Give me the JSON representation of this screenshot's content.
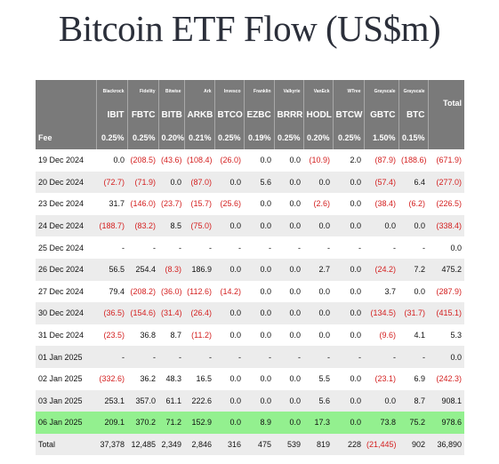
{
  "title": "Bitcoin ETF Flow (US$m)",
  "colors": {
    "header_bg": "#7a7a7a",
    "negative": "#d42020",
    "highlight": "#93f08f",
    "alt_row": "#ececec"
  },
  "issuers": [
    "Blackrock",
    "Fidelity",
    "Bitwise",
    "Ark",
    "Invesco",
    "Franklin",
    "Valkyrie",
    "VanEck",
    "WTree",
    "Grayscale",
    "Grayscale"
  ],
  "total_header": "Total",
  "tickers": [
    "IBIT",
    "FBTC",
    "BITB",
    "ARKB",
    "BTCO",
    "EZBC",
    "BRRR",
    "HODL",
    "BTCW",
    "GBTC",
    "BTC"
  ],
  "fee_label": "Fee",
  "fees": [
    "0.25%",
    "0.25%",
    "0.20%",
    "0.21%",
    "0.25%",
    "0.19%",
    "0.25%",
    "0.20%",
    "0.25%",
    "1.50%",
    "0.15%"
  ],
  "rows": [
    {
      "date": "19 Dec 2024",
      "values": [
        "0.0",
        "(208.5)",
        "(43.6)",
        "(108.4)",
        "(26.0)",
        "0.0",
        "0.0",
        "(10.9)",
        "2.0",
        "(87.9)",
        "(188.6)",
        "(671.9)"
      ]
    },
    {
      "date": "20 Dec 2024",
      "values": [
        "(72.7)",
        "(71.9)",
        "0.0",
        "(87.0)",
        "0.0",
        "5.6",
        "0.0",
        "0.0",
        "0.0",
        "(57.4)",
        "6.4",
        "(277.0)"
      ]
    },
    {
      "date": "23 Dec 2024",
      "values": [
        "31.7",
        "(146.0)",
        "(23.7)",
        "(15.7)",
        "(25.6)",
        "0.0",
        "0.0",
        "(2.6)",
        "0.0",
        "(38.4)",
        "(6.2)",
        "(226.5)"
      ]
    },
    {
      "date": "24 Dec 2024",
      "values": [
        "(188.7)",
        "(83.2)",
        "8.5",
        "(75.0)",
        "0.0",
        "0.0",
        "0.0",
        "0.0",
        "0.0",
        "0.0",
        "0.0",
        "(338.4)"
      ]
    },
    {
      "date": "25 Dec 2024",
      "values": [
        "-",
        "-",
        "-",
        "-",
        "-",
        "-",
        "-",
        "-",
        "-",
        "-",
        "-",
        "0.0"
      ]
    },
    {
      "date": "26 Dec 2024",
      "values": [
        "56.5",
        "254.4",
        "(8.3)",
        "186.9",
        "0.0",
        "0.0",
        "0.0",
        "2.7",
        "0.0",
        "(24.2)",
        "7.2",
        "475.2"
      ]
    },
    {
      "date": "27 Dec 2024",
      "values": [
        "79.4",
        "(208.2)",
        "(36.0)",
        "(112.6)",
        "(14.2)",
        "0.0",
        "0.0",
        "0.0",
        "0.0",
        "3.7",
        "0.0",
        "(287.9)"
      ]
    },
    {
      "date": "30 Dec 2024",
      "values": [
        "(36.5)",
        "(154.6)",
        "(31.4)",
        "(26.4)",
        "0.0",
        "0.0",
        "0.0",
        "0.0",
        "0.0",
        "(134.5)",
        "(31.7)",
        "(415.1)"
      ]
    },
    {
      "date": "31 Dec 2024",
      "values": [
        "(23.5)",
        "36.8",
        "8.7",
        "(11.2)",
        "0.0",
        "0.0",
        "0.0",
        "0.0",
        "0.0",
        "(9.6)",
        "4.1",
        "5.3"
      ]
    },
    {
      "date": "01 Jan 2025",
      "values": [
        "-",
        "-",
        "-",
        "-",
        "-",
        "-",
        "-",
        "-",
        "-",
        "-",
        "-",
        "0.0"
      ]
    },
    {
      "date": "02 Jan 2025",
      "values": [
        "(332.6)",
        "36.2",
        "48.3",
        "16.5",
        "0.0",
        "0.0",
        "0.0",
        "5.5",
        "0.0",
        "(23.1)",
        "6.9",
        "(242.3)"
      ]
    },
    {
      "date": "03 Jan 2025",
      "values": [
        "253.1",
        "357.0",
        "61.1",
        "222.6",
        "0.0",
        "0.0",
        "0.0",
        "5.6",
        "0.0",
        "0.0",
        "8.7",
        "908.1"
      ]
    },
    {
      "date": "06 Jan 2025",
      "values": [
        "209.1",
        "370.2",
        "71.2",
        "152.9",
        "0.0",
        "8.9",
        "0.0",
        "17.3",
        "0.0",
        "73.8",
        "75.2",
        "978.6"
      ],
      "highlight": true
    }
  ],
  "totals": {
    "label": "Total",
    "values": [
      "37,378",
      "12,485",
      "2,349",
      "2,846",
      "316",
      "475",
      "539",
      "819",
      "228",
      "(21,445)",
      "902",
      "36,890"
    ]
  }
}
